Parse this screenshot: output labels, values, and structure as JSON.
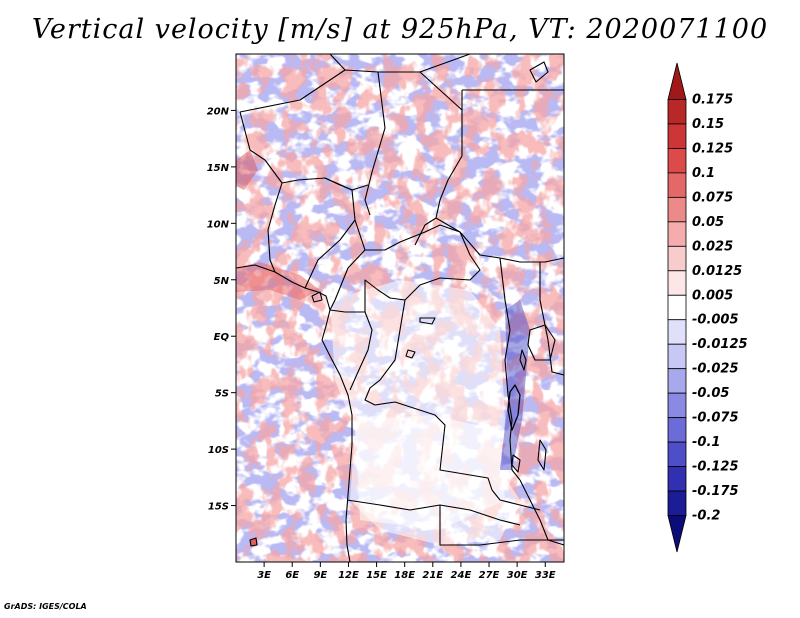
{
  "title": "Vertical velocity [m/s] at 925hPa, VT: 2020071100",
  "credit": "GrADS: IGES/COLA",
  "map": {
    "lon_range": [
      0,
      35
    ],
    "lat_range": [
      -20,
      25
    ],
    "lat_labels": [
      "20N",
      "15N",
      "10N",
      "5N",
      "EQ",
      "5S",
      "10S",
      "15S"
    ],
    "lat_values": [
      20,
      15,
      10,
      5,
      0,
      -5,
      -10,
      -15
    ],
    "lon_labels": [
      "3E",
      "6E",
      "9E",
      "12E",
      "15E",
      "18E",
      "21E",
      "24E",
      "27E",
      "30E",
      "33E"
    ],
    "lon_values": [
      3,
      6,
      9,
      12,
      15,
      18,
      21,
      24,
      27,
      30,
      33
    ]
  },
  "colorbar": {
    "labels": [
      "0.175",
      "0.15",
      "0.125",
      "0.1",
      "0.075",
      "0.05",
      "0.025",
      "0.0125",
      "0.005",
      "-0.005",
      "-0.0125",
      "-0.025",
      "-0.05",
      "-0.075",
      "-0.1",
      "-0.125",
      "-0.175",
      "-0.2"
    ],
    "colors": [
      "#a01818",
      "#b82828",
      "#cc3636",
      "#dc4a4a",
      "#e46868",
      "#ec8a8a",
      "#f4acac",
      "#f8cccc",
      "#fce6e6",
      "#ffffff",
      "#e0e0fa",
      "#c8c8f4",
      "#a8a8ec",
      "#8a8ae4",
      "#6c6cd8",
      "#4e4ec8",
      "#3030b0",
      "#1c1c96",
      "#0c0c78"
    ]
  }
}
